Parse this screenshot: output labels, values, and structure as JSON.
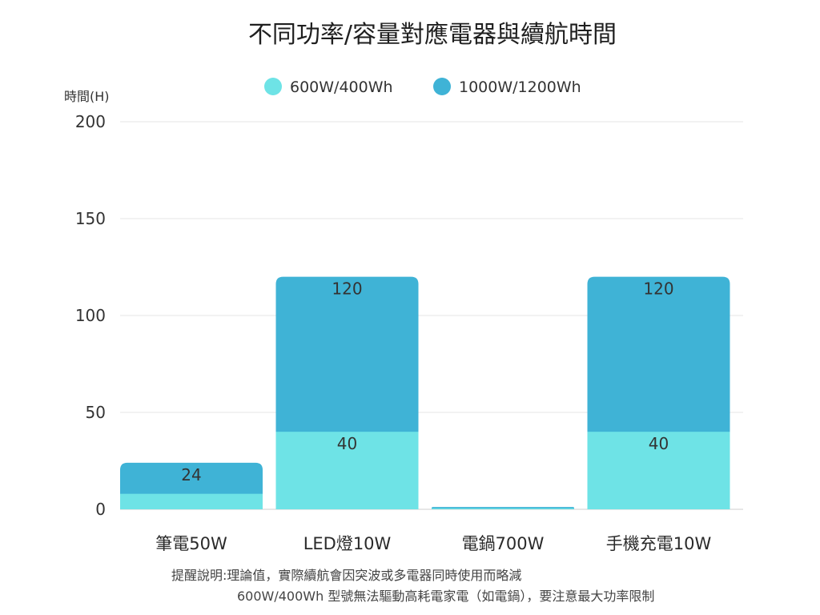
{
  "chart_data": {
    "type": "bar",
    "title": "不同功率/容量對應電器與續航時間",
    "ylabel": "時間(H)",
    "xlabel": "",
    "ylim": [
      0,
      200
    ],
    "yticks": [
      0,
      50,
      100,
      150,
      200
    ],
    "grid": true,
    "legend_position": "top-center",
    "categories": [
      "筆電50W",
      "LED燈10W",
      "電鍋700W",
      "手機充電10W"
    ],
    "series": [
      {
        "name": "600W/400Wh",
        "color": "#6ee3e6",
        "values": [
          8,
          40,
          0.5,
          40
        ],
        "labels": [
          "",
          "40",
          "",
          "40"
        ]
      },
      {
        "name": "1000W/1200Wh",
        "color": "#3fb3d6",
        "values": [
          24,
          120,
          1.2,
          120
        ],
        "labels": [
          "24",
          "120",
          "",
          "120"
        ]
      }
    ],
    "notes": [
      "提醒說明:理論值，實際續航會因突波或多電器同時使用而略減",
      "600W/400Wh 型號無法驅動高耗電家電（如電鍋），要注意最大功率限制"
    ]
  }
}
